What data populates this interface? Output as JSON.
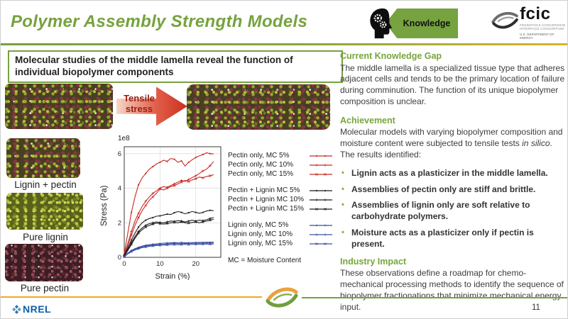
{
  "slide": {
    "title": "Polymer Assembly Strength Models",
    "page_number": "11",
    "badge": {
      "label": "Knowledge"
    },
    "fcic_logo": {
      "name": "fcic",
      "line1": "FEEDSTOCK-CONVERSION",
      "line2": "INTERFACE CONSORTIUM",
      "line3": "U.S. DEPARTMENT OF ENERGY"
    },
    "nrel_logo": {
      "text": "NREL"
    }
  },
  "left_panel": {
    "heading": "Molecular studies of the middle lamella reveal the function of individual biopolymer components",
    "tensile_arrow_label": "Tensile stress",
    "image_labels": [
      "Lignin + pectin",
      "Pure lignin",
      "Pure pectin"
    ]
  },
  "chart_data": {
    "type": "line",
    "title": "",
    "xlabel": "Strain (%)",
    "ylabel": "Stress (Pa)",
    "y_scale_label": "1e8",
    "xlim": [
      0,
      27
    ],
    "ylim": [
      0,
      6.4
    ],
    "xticks": [
      0,
      10,
      20
    ],
    "yticks": [
      0,
      2,
      4,
      6
    ],
    "grid": true,
    "legend_position": "right",
    "legend_note": "MC = Moisture Content",
    "x": [
      0,
      1,
      2,
      3,
      4,
      5,
      6,
      7,
      8,
      9,
      10,
      11,
      12,
      13,
      14,
      15,
      16,
      17,
      18,
      19,
      20,
      21,
      22,
      23,
      24,
      25
    ],
    "series": [
      {
        "name": "Pectin only, MC 5%",
        "group": "pectin",
        "color": "#c92a22",
        "marker": "dot",
        "values": [
          0.2,
          1.4,
          2.6,
          3.5,
          4.2,
          4.6,
          4.85,
          5.1,
          5.25,
          5.4,
          5.5,
          5.62,
          5.55,
          5.72,
          5.68,
          5.5,
          5.58,
          5.28,
          5.5,
          5.65,
          5.78,
          5.88,
          5.95,
          6.05,
          6.0,
          5.98
        ]
      },
      {
        "name": "Pectin only, MC 10%",
        "group": "pectin",
        "color": "#c92a22",
        "marker": "plus",
        "values": [
          0.15,
          0.8,
          1.5,
          2.1,
          2.55,
          2.95,
          3.25,
          3.5,
          3.7,
          3.85,
          4.0,
          4.1,
          4.05,
          4.15,
          4.25,
          4.35,
          4.45,
          4.4,
          4.5,
          4.62,
          4.72,
          4.85,
          5.0,
          5.1,
          5.3,
          5.55
        ]
      },
      {
        "name": "Pectin only, MC 15%",
        "group": "pectin",
        "color": "#c92a22",
        "marker": "x",
        "values": [
          0.1,
          0.7,
          1.3,
          1.85,
          2.3,
          2.7,
          3.0,
          3.3,
          3.5,
          3.7,
          3.95,
          3.9,
          4.0,
          4.1,
          4.15,
          4.25,
          4.35,
          4.45,
          4.38,
          4.48,
          4.55,
          4.65,
          4.6,
          4.68,
          4.72,
          4.78
        ]
      },
      {
        "name": "Pectin + Lignin MC 5%",
        "group": "pectin_lignin",
        "color": "#1c1c1c",
        "marker": "dot",
        "values": [
          0.1,
          0.55,
          1.0,
          1.4,
          1.75,
          2.0,
          2.15,
          2.25,
          2.3,
          2.38,
          2.4,
          2.45,
          2.5,
          2.48,
          2.58,
          2.65,
          2.6,
          2.52,
          2.58,
          2.65,
          2.6,
          2.55,
          2.6,
          2.68,
          2.72,
          2.7
        ]
      },
      {
        "name": "Pectin + Lignin MC 10%",
        "group": "pectin_lignin",
        "color": "#1c1c1c",
        "marker": "plus",
        "values": [
          0.08,
          0.45,
          0.85,
          1.2,
          1.5,
          1.7,
          1.85,
          1.95,
          2.0,
          2.05,
          2.02,
          2.0,
          2.05,
          2.1,
          2.08,
          2.12,
          2.1,
          2.05,
          2.1,
          2.15,
          2.1,
          2.15,
          2.12,
          2.18,
          2.25,
          2.3
        ]
      },
      {
        "name": "Pectin + Lignin MC 15%",
        "group": "pectin_lignin",
        "color": "#1c1c1c",
        "marker": "x",
        "values": [
          0.06,
          0.4,
          0.75,
          1.1,
          1.4,
          1.6,
          1.75,
          1.85,
          1.92,
          1.98,
          1.95,
          1.92,
          1.96,
          2.0,
          2.02,
          2.0,
          2.05,
          2.0,
          1.98,
          2.02,
          2.05,
          2.0,
          2.05,
          2.1,
          2.15,
          2.2
        ]
      },
      {
        "name": "Lignin only, MC 5%",
        "group": "lignin",
        "color": "#3c50a2",
        "marker": "dot",
        "values": [
          0.05,
          0.25,
          0.4,
          0.5,
          0.58,
          0.65,
          0.7,
          0.73,
          0.76,
          0.78,
          0.8,
          0.82,
          0.83,
          0.84,
          0.85,
          0.84,
          0.86,
          0.85,
          0.84,
          0.86,
          0.85,
          0.87,
          0.86,
          0.88,
          0.87,
          0.88
        ]
      },
      {
        "name": "Lignin only, MC 10%",
        "group": "lignin",
        "color": "#3c50a2",
        "marker": "plus",
        "values": [
          0.04,
          0.22,
          0.36,
          0.46,
          0.54,
          0.6,
          0.65,
          0.68,
          0.71,
          0.73,
          0.75,
          0.76,
          0.78,
          0.79,
          0.8,
          0.79,
          0.8,
          0.81,
          0.8,
          0.81,
          0.82,
          0.81,
          0.82,
          0.83,
          0.82,
          0.83
        ]
      },
      {
        "name": "Lignin only, MC 15%",
        "group": "lignin",
        "color": "#3c50a2",
        "marker": "x",
        "values": [
          0.03,
          0.2,
          0.33,
          0.42,
          0.5,
          0.56,
          0.6,
          0.64,
          0.66,
          0.68,
          0.7,
          0.71,
          0.72,
          0.73,
          0.74,
          0.73,
          0.74,
          0.75,
          0.74,
          0.75,
          0.76,
          0.75,
          0.76,
          0.77,
          0.76,
          0.77
        ]
      }
    ]
  },
  "right_panel": {
    "gap": {
      "heading": "Current Knowledge Gap",
      "body": "The middle lamella is a specialized tissue type that adheres adjacent cells and tends to be the primary location of failure during comminution. The function of its unique biopolymer composition is unclear."
    },
    "achievement": {
      "heading": "Achievement",
      "body_pre": "Molecular models with varying biopolymer composition and moisture content were subjected to tensile tests ",
      "body_italic": "in silico",
      "body_post": ". The results identified:",
      "bullets": [
        "Lignin acts as a plasticizer in the middle lamella.",
        "Assemblies of pectin only are stiff and brittle.",
        "Assemblies of lignin only are soft relative to carbohydrate polymers.",
        "Moisture acts as a plasticizer only if pectin is present."
      ]
    },
    "impact": {
      "heading": "Industry Impact",
      "body": "These observations define a roadmap for chemo-mechanical processing methods to identify the sequence of biopolymer fractionations that minimize mechanical energy input."
    }
  },
  "colors": {
    "accent_green": "#76a23e",
    "rule_gold": "#d9b428",
    "arrow_red": "#c9311f",
    "footer_orange": "#f0a828",
    "nrel_blue": "#0f5ea8",
    "series_red": "#c92a22",
    "series_black": "#1c1c1c",
    "series_blue": "#3c50a2"
  }
}
